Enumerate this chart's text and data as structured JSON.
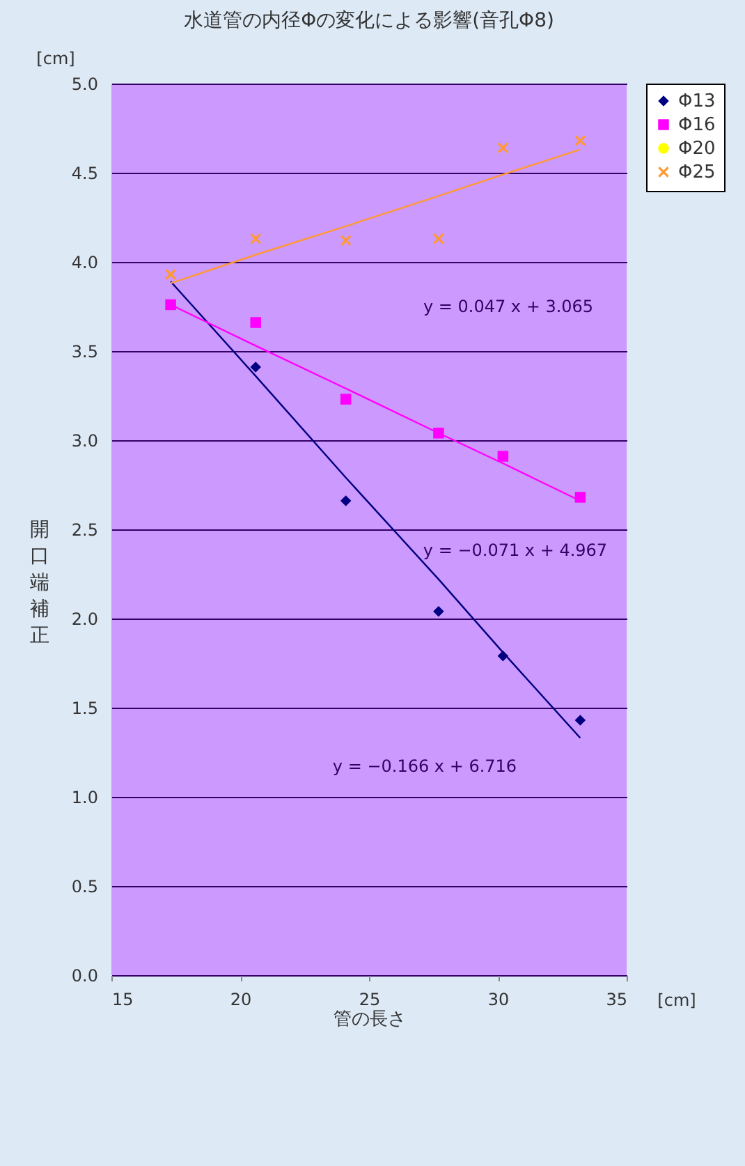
{
  "chart_data": {
    "type": "scatter",
    "title": "水道管の内径Φの変化による影響(音孔Φ8)",
    "xlabel": "管の長さ",
    "ylabel": "開口端補正",
    "x": [
      17.3,
      20.6,
      24.1,
      27.7,
      30.2,
      33.2
    ],
    "series": [
      {
        "name": "Φ13",
        "color": "#000080",
        "marker": "diamond",
        "values": [
          null,
          3.41,
          2.66,
          2.04,
          1.79,
          1.43
        ]
      },
      {
        "name": "Φ16",
        "color": "#ff00ff",
        "marker": "square",
        "values": [
          3.76,
          3.66,
          3.23,
          3.04,
          2.91,
          2.68
        ]
      },
      {
        "name": "Φ20",
        "color": "#ffff00",
        "marker": "circle",
        "values": [
          null,
          null,
          null,
          null,
          null,
          null
        ]
      },
      {
        "name": "Φ25",
        "color": "#ff9933",
        "marker": "cross",
        "values": [
          3.93,
          4.13,
          4.12,
          4.13,
          4.64,
          4.68
        ]
      },
      {
        "type": "line",
        "color": "#000080",
        "values": [
          3.89,
          3.36,
          2.79,
          2.22,
          1.81,
          1.33
        ]
      },
      {
        "type": "line",
        "color": "#ff00ff",
        "values": [
          3.76,
          3.53,
          3.29,
          3.04,
          2.87,
          2.66
        ]
      },
      {
        "type": "line",
        "color": "#ff9933",
        "values": [
          3.88,
          4.04,
          4.2,
          4.37,
          4.49,
          4.63
        ]
      }
    ],
    "annotations": [
      "y = 0.047 x + 3.065",
      "y = −0.071 x + 4.967",
      "y = −0.166 x + 6.716",
      "[cm]",
      "[cm]"
    ],
    "xlim": [
      15,
      35
    ],
    "xticks": [
      15,
      20,
      25,
      30,
      35
    ],
    "ylim": [
      0,
      5
    ],
    "yticks": [
      {
        "value": 0,
        "label": "0.0"
      },
      {
        "value": 0.5,
        "label": "0.5"
      },
      {
        "value": 1,
        "label": "1.0"
      },
      {
        "value": 1.5,
        "label": "1.5"
      },
      {
        "value": 2,
        "label": "2.0"
      },
      {
        "value": 2.5,
        "label": "2.5"
      },
      {
        "value": 3,
        "label": "3.0"
      },
      {
        "value": 3.5,
        "label": "3.5"
      },
      {
        "value": 4,
        "label": "4.0"
      },
      {
        "value": 4.5,
        "label": "4.5"
      },
      {
        "value": 5,
        "label": "5.0"
      }
    ],
    "grid": "y",
    "legend": "right"
  }
}
